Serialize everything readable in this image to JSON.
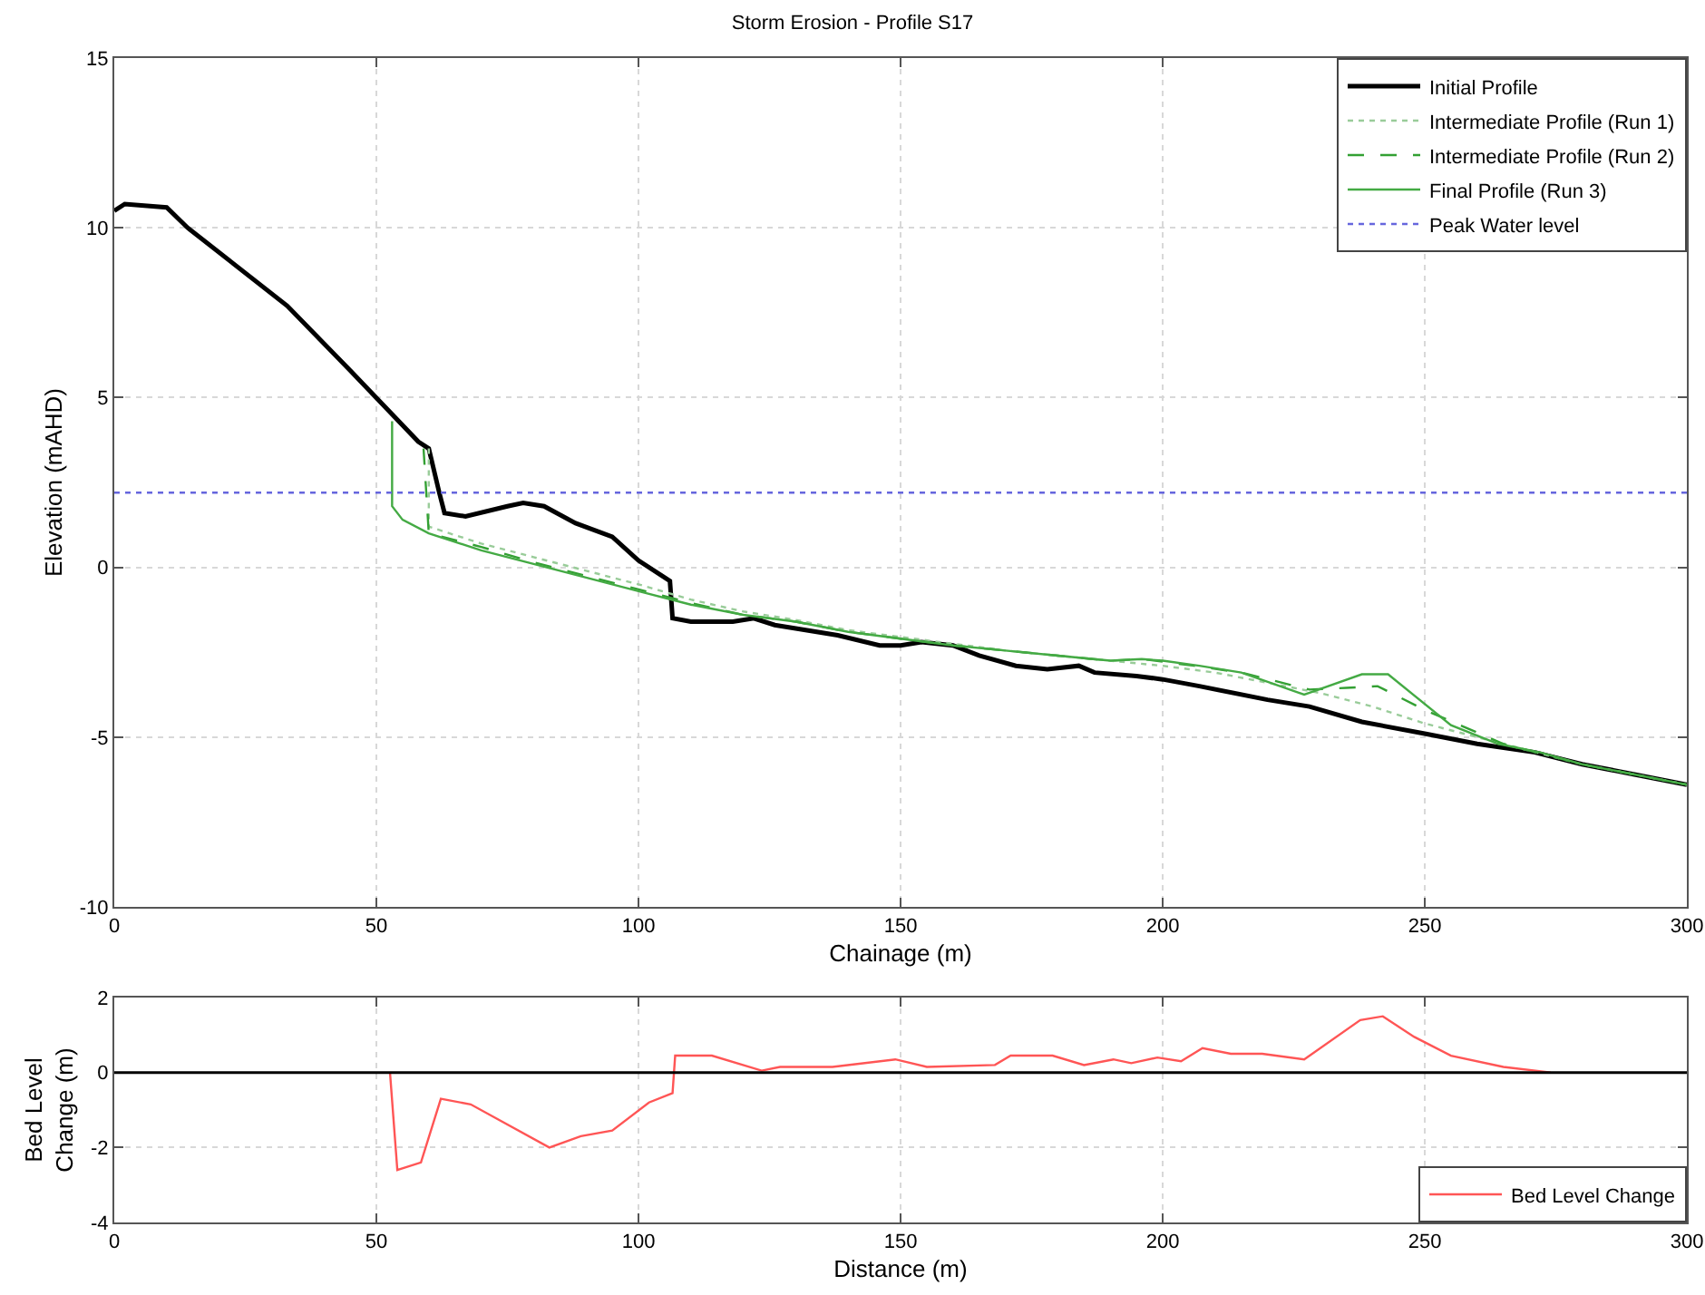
{
  "chart_data": [
    {
      "type": "line",
      "title": "Storm Erosion - Profile S17",
      "xlabel": "Chainage (m)",
      "ylabel": "Elevation (mAHD)",
      "xlim": [
        0,
        300
      ],
      "ylim": [
        -10,
        15
      ],
      "xticks": [
        0,
        50,
        100,
        150,
        200,
        250,
        300
      ],
      "yticks": [
        -10,
        -5,
        0,
        5,
        10,
        15
      ],
      "grid": true,
      "legend": "top right",
      "series": [
        {
          "name": "Initial Profile",
          "color": "#000000",
          "line_style": "solid",
          "x": [
            0,
            2,
            10,
            14,
            33,
            45,
            58,
            60,
            62,
            63,
            67,
            75,
            78,
            82,
            88,
            95,
            100,
            105,
            106,
            106.5,
            110,
            118,
            122,
            126,
            130,
            138,
            146,
            150,
            154,
            160,
            165,
            172,
            178,
            184,
            187,
            195,
            200,
            207,
            220,
            228,
            238,
            250,
            260,
            271,
            280,
            290,
            300
          ],
          "values": [
            10.5,
            10.7,
            10.6,
            10,
            7.7,
            5.8,
            3.7,
            3.5,
            2.2,
            1.6,
            1.5,
            1.8,
            1.9,
            1.8,
            1.3,
            0.9,
            0.2,
            -0.3,
            -0.4,
            -1.5,
            -1.6,
            -1.6,
            -1.5,
            -1.7,
            -1.8,
            -2,
            -2.3,
            -2.3,
            -2.2,
            -2.3,
            -2.6,
            -2.9,
            -3,
            -2.9,
            -3.1,
            -3.2,
            -3.3,
            -3.5,
            -3.9,
            -4.1,
            -4.55,
            -4.9,
            -5.2,
            -5.45,
            -5.8,
            -6.1,
            -6.4
          ]
        },
        {
          "name": "Intermediate Profile (Run 1)",
          "color": "#99cc99",
          "line_style": "dotted",
          "x": [
            60,
            60,
            70,
            80,
            90,
            100,
            110,
            120,
            130,
            140,
            150,
            160,
            170,
            180,
            190,
            200,
            210,
            220,
            230,
            240,
            250,
            265,
            280,
            290,
            300
          ],
          "values": [
            3.5,
            1.2,
            0.7,
            0.3,
            -0.1,
            -0.5,
            -0.95,
            -1.3,
            -1.55,
            -1.85,
            -2.05,
            -2.25,
            -2.45,
            -2.6,
            -2.75,
            -2.9,
            -3.1,
            -3.4,
            -3.7,
            -4.1,
            -4.6,
            -5.2,
            -5.8,
            -6.1,
            -6.4
          ]
        },
        {
          "name": "Intermediate Profile (Run 2)",
          "color": "#33a033",
          "line_style": "dashed",
          "x": [
            59,
            60,
            70,
            80,
            90,
            100,
            110,
            120,
            130,
            140,
            150,
            160,
            170,
            180,
            190,
            196,
            206,
            215,
            228,
            235,
            241,
            250,
            265,
            280,
            290,
            300
          ],
          "values": [
            3.5,
            1,
            0.6,
            0.15,
            -0.25,
            -0.65,
            -1.05,
            -1.4,
            -1.6,
            -1.9,
            -2.1,
            -2.3,
            -2.45,
            -2.6,
            -2.75,
            -2.7,
            -2.9,
            -3.1,
            -3.6,
            -3.55,
            -3.5,
            -4.2,
            -5.2,
            -5.8,
            -6.1,
            -6.4
          ]
        },
        {
          "name": "Final Profile (Run 3)",
          "color": "#44aa44",
          "line_style": "solid",
          "x": [
            53,
            53,
            55,
            60,
            70,
            80,
            90,
            100,
            110,
            120,
            130,
            140,
            150,
            160,
            170,
            180,
            190,
            196,
            200,
            207,
            215,
            227,
            238,
            243,
            255,
            264,
            272,
            280,
            290,
            300
          ],
          "values": [
            4.3,
            1.8,
            1.4,
            1,
            0.5,
            0.1,
            -0.3,
            -0.7,
            -1.1,
            -1.4,
            -1.6,
            -1.9,
            -2.1,
            -2.3,
            -2.45,
            -2.6,
            -2.75,
            -2.7,
            -2.75,
            -2.9,
            -3.1,
            -3.75,
            -3.15,
            -3.15,
            -4.65,
            -5.2,
            -5.45,
            -5.8,
            -6.1,
            -6.4
          ]
        },
        {
          "name": "Peak Water level",
          "color": "#6666dd",
          "line_style": "dotted",
          "x": [
            0,
            300
          ],
          "values": [
            2.2,
            2.2
          ]
        }
      ]
    },
    {
      "type": "line",
      "xlabel": "Distance (m)",
      "ylabel": "Bed Level\nChange (m)",
      "xlim": [
        0,
        300
      ],
      "ylim": [
        -4,
        2
      ],
      "xticks": [
        0,
        50,
        100,
        150,
        200,
        250,
        300
      ],
      "yticks": [
        -4,
        -2,
        0,
        2
      ],
      "grid": true,
      "legend": "bottom right",
      "ref_lines": [
        {
          "axis": "y",
          "value": 0,
          "color": "#000000",
          "line_style": "solid"
        }
      ],
      "series": [
        {
          "name": "Bed Level Change",
          "color": "#ff5555",
          "line_style": "solid",
          "x": [
            52.6,
            54,
            58.5,
            62.3,
            68,
            83,
            89,
            95,
            102,
            106.5,
            107,
            114,
            123.5,
            127,
            137,
            149,
            155,
            168,
            171,
            179,
            185,
            190.6,
            194,
            199,
            203.5,
            207.6,
            213,
            219,
            227,
            237.7,
            242,
            248,
            255,
            265,
            274
          ],
          "values": [
            0,
            -2.6,
            -2.4,
            -0.7,
            -0.85,
            -2,
            -1.7,
            -1.55,
            -0.8,
            -0.55,
            0.45,
            0.45,
            0.05,
            0.15,
            0.15,
            0.35,
            0.15,
            0.2,
            0.45,
            0.45,
            0.2,
            0.35,
            0.25,
            0.4,
            0.3,
            0.65,
            0.5,
            0.5,
            0.35,
            1.4,
            1.5,
            0.95,
            0.45,
            0.15,
            0
          ]
        }
      ]
    }
  ]
}
